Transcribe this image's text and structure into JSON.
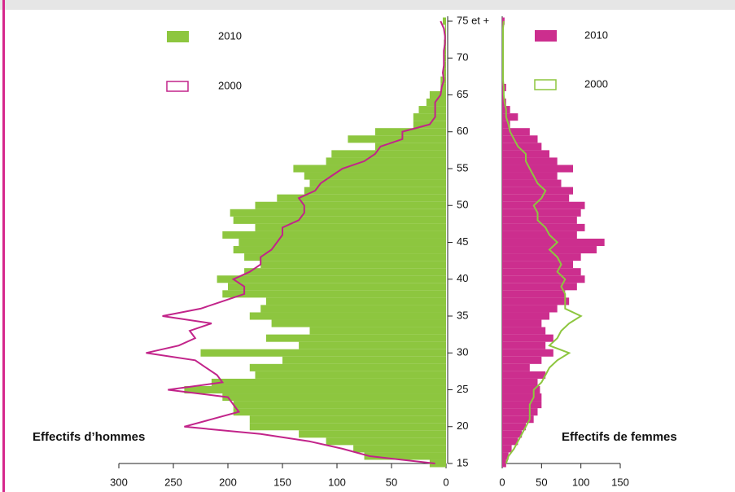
{
  "chart_data": {
    "type": "pyramid",
    "categories": [
      "15",
      null,
      null,
      null,
      null,
      "20",
      null,
      null,
      null,
      null,
      "25",
      null,
      null,
      null,
      null,
      "30",
      null,
      null,
      null,
      null,
      "35",
      null,
      null,
      null,
      null,
      "40",
      null,
      null,
      null,
      null,
      "45",
      null,
      null,
      null,
      null,
      "50",
      null,
      null,
      null,
      null,
      "55",
      null,
      null,
      null,
      null,
      "60",
      null,
      null,
      null,
      null,
      "65",
      null,
      null,
      null,
      null,
      "70",
      null,
      null,
      null,
      null,
      "75 et +"
    ],
    "left": {
      "xlabel": "Effectifs d’hommes",
      "xlim": [
        0,
        300
      ],
      "xticks": [
        0,
        50,
        100,
        150,
        200,
        250,
        300
      ],
      "series": [
        {
          "name": "2010",
          "type": "bar",
          "color": "#8dc63f",
          "values": [
            15,
            75,
            85,
            110,
            135,
            180,
            180,
            195,
            195,
            205,
            240,
            215,
            175,
            180,
            150,
            225,
            135,
            165,
            125,
            160,
            180,
            170,
            165,
            205,
            200,
            210,
            185,
            170,
            185,
            195,
            190,
            205,
            175,
            195,
            198,
            175,
            155,
            130,
            125,
            130,
            140,
            110,
            105,
            65,
            90,
            65,
            30,
            30,
            25,
            18,
            15,
            5,
            5,
            3,
            2,
            2,
            2,
            2,
            1,
            1,
            3
          ]
        },
        {
          "name": "2000",
          "type": "line",
          "color": "#c2248a",
          "values": [
            10,
            70,
            95,
            125,
            170,
            240,
            215,
            190,
            195,
            200,
            255,
            205,
            210,
            220,
            230,
            275,
            245,
            230,
            235,
            215,
            260,
            225,
            205,
            185,
            185,
            195,
            180,
            170,
            170,
            160,
            155,
            150,
            150,
            135,
            130,
            130,
            135,
            120,
            115,
            105,
            95,
            75,
            65,
            60,
            40,
            40,
            15,
            10,
            10,
            10,
            5,
            4,
            2,
            3,
            2,
            2,
            2,
            1,
            1,
            2,
            5
          ]
        }
      ]
    },
    "right": {
      "xlabel": "Effectifs de femmes",
      "xlim": [
        0,
        150
      ],
      "xticks": [
        0,
        50,
        100,
        150
      ],
      "series": [
        {
          "name": "2010",
          "type": "bar",
          "color": "#cc2e8e",
          "values": [
            5,
            8,
            12,
            20,
            25,
            30,
            40,
            45,
            50,
            50,
            48,
            45,
            55,
            35,
            50,
            65,
            55,
            65,
            55,
            50,
            60,
            70,
            85,
            80,
            95,
            105,
            100,
            90,
            100,
            120,
            130,
            95,
            105,
            95,
            100,
            105,
            85,
            90,
            75,
            70,
            90,
            70,
            60,
            50,
            45,
            35,
            10,
            20,
            10,
            5,
            2,
            5,
            1,
            1,
            1,
            1,
            1,
            1,
            1,
            1,
            3
          ]
        },
        {
          "name": "2000",
          "type": "line",
          "color": "#8dc63f",
          "values": [
            5,
            8,
            15,
            20,
            25,
            30,
            35,
            35,
            35,
            40,
            40,
            50,
            55,
            60,
            70,
            85,
            60,
            70,
            75,
            85,
            100,
            80,
            80,
            80,
            75,
            80,
            70,
            75,
            70,
            60,
            70,
            60,
            55,
            45,
            45,
            40,
            50,
            55,
            45,
            40,
            35,
            30,
            30,
            20,
            15,
            10,
            8,
            5,
            5,
            3,
            2,
            2,
            1,
            1,
            1,
            1,
            1,
            1,
            1,
            1,
            2
          ]
        }
      ]
    }
  }
}
